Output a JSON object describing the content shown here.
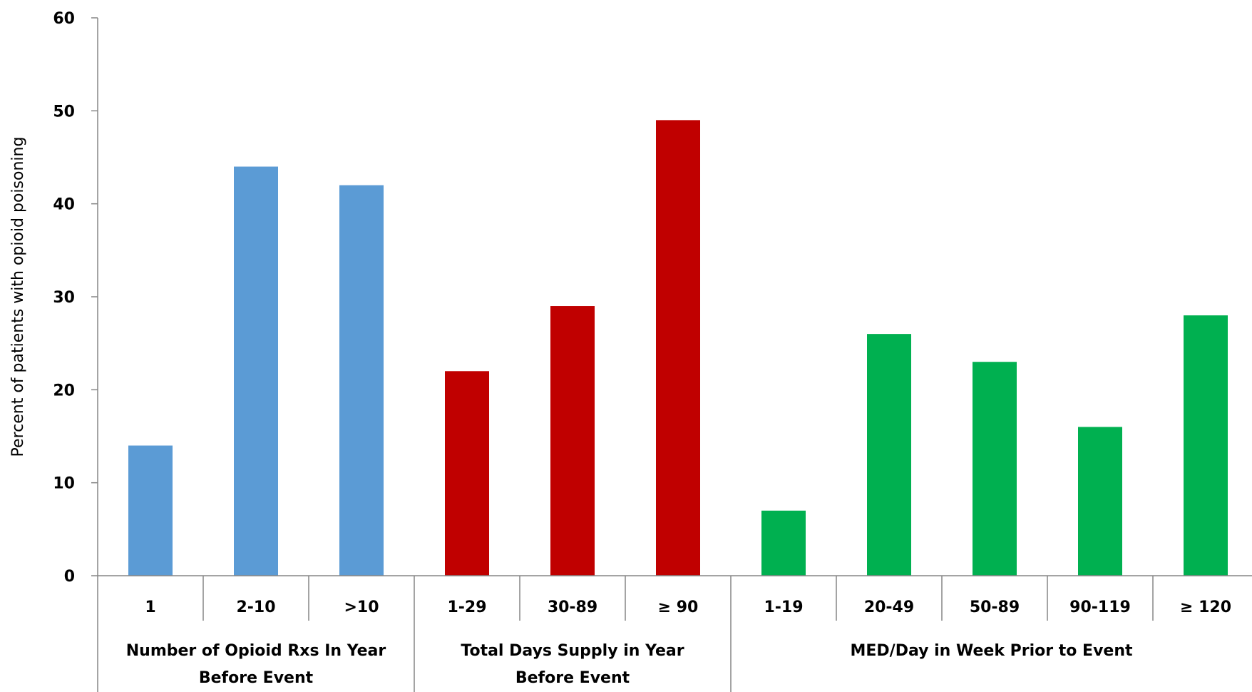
{
  "chart_data": {
    "type": "bar",
    "ylabel": "Percent of patients with opioid poisoning",
    "ylim": [
      0,
      60
    ],
    "yticks": [
      0,
      10,
      20,
      30,
      40,
      50,
      60
    ],
    "grid": false,
    "legend": "none",
    "groups": [
      {
        "label_lines": [
          "Number of Opioid Rxs In Year",
          "Before Event"
        ],
        "color": "#5B9BD5",
        "categories": [
          "1",
          "2-10",
          ">10"
        ],
        "values": [
          14,
          44,
          42
        ]
      },
      {
        "label_lines": [
          "Total Days Supply in Year",
          "Before Event"
        ],
        "color": "#C00000",
        "categories": [
          "1-29",
          "30-89",
          "≥ 90"
        ],
        "values": [
          22,
          29,
          49
        ]
      },
      {
        "label_lines": [
          "MED/Day in Week Prior to Event"
        ],
        "color": "#00B050",
        "categories": [
          "1-19",
          "20-49",
          "50-89",
          "90-119",
          "≥ 120"
        ],
        "values": [
          7,
          26,
          23,
          16,
          28
        ]
      }
    ]
  }
}
